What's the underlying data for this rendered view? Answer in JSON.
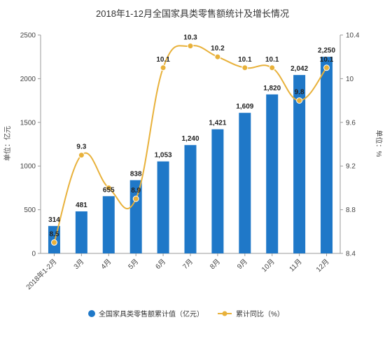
{
  "chart_data": {
    "type": "bar",
    "title": "2018年1-12月全国家具类零售额统计及增长情况",
    "categories": [
      "2018年1-2月",
      "3月",
      "4月",
      "5月",
      "6月",
      "7月",
      "8月",
      "9月",
      "10月",
      "11月",
      "12月"
    ],
    "series": [
      {
        "name": "全国家具类零售额累计值（亿元）",
        "type": "bar",
        "axis": "left",
        "values": [
          314,
          481,
          655,
          838,
          1053,
          1240,
          1421,
          1609,
          1820,
          2042,
          2250
        ],
        "value_labels": [
          "314",
          "481",
          "655",
          "838",
          "1,053",
          "1,240",
          "1,421",
          "1,609",
          "1,820",
          "2,042",
          "2,250"
        ]
      },
      {
        "name": "累计同比（%）",
        "type": "line",
        "axis": "right",
        "values": [
          8.5,
          9.3,
          9.0,
          8.9,
          10.1,
          10.3,
          10.2,
          10.1,
          10.1,
          9.8,
          10.1
        ],
        "value_labels": [
          "8.5",
          "9.3",
          "",
          "8.9",
          "10.1",
          "10.3",
          "10.2",
          "10.1",
          "10.1",
          "9.8",
          "10.1"
        ]
      }
    ],
    "ylabel": "单位：亿元",
    "y2label": "单位：%",
    "ylim": [
      0,
      2500
    ],
    "y2lim": [
      8.4,
      10.4
    ],
    "yticks": [
      "0",
      "500",
      "1000",
      "1500",
      "2000",
      "2500"
    ],
    "y2ticks": [
      "8.4",
      "8.8",
      "9.2",
      "9.6",
      "10",
      "10.4"
    ],
    "colors": {
      "bar": "#1f78c8",
      "line": "#e8b13a",
      "text": "#333333"
    },
    "legend_position": "bottom",
    "grid": false,
    "legend": [
      {
        "label": "全国家具类零售额累计值（亿元）",
        "icon": "circle-blue-icon"
      },
      {
        "label": "累计同比（%）",
        "icon": "line-marker-orange-icon"
      }
    ]
  }
}
